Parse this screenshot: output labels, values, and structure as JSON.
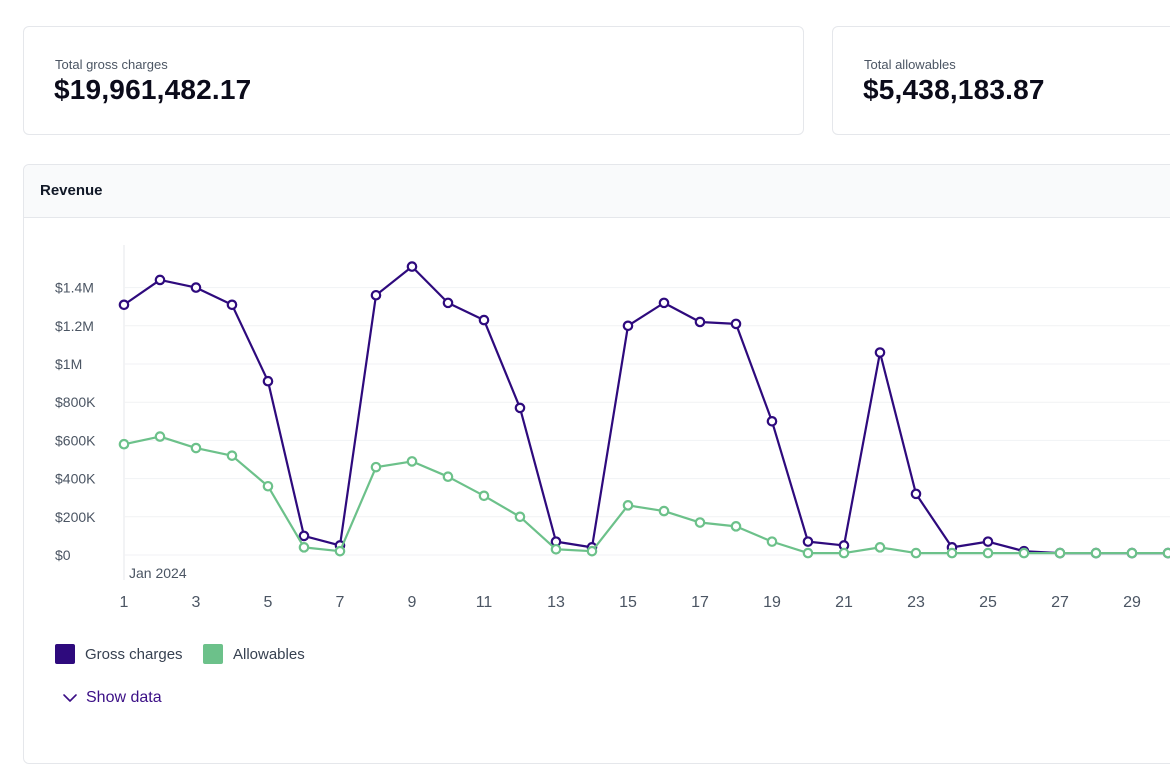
{
  "kpis": {
    "gross": {
      "label": "Total gross charges",
      "value": "$19,961,482.17"
    },
    "allowables": {
      "label": "Total allowables",
      "value": "$5,438,183.87"
    }
  },
  "panel": {
    "title": "Revenue"
  },
  "chart_data": {
    "type": "line",
    "title": "",
    "x": [
      1,
      2,
      3,
      4,
      5,
      6,
      7,
      8,
      9,
      10,
      11,
      12,
      13,
      14,
      15,
      16,
      17,
      18,
      19,
      20,
      21,
      22,
      23,
      24,
      25,
      26,
      27,
      28,
      29,
      30
    ],
    "x_tick_labels": [
      "1",
      "3",
      "5",
      "7",
      "9",
      "11",
      "13",
      "15",
      "17",
      "19",
      "21",
      "23",
      "25",
      "27",
      "29"
    ],
    "x_sub_label": "Jan 2024",
    "y_tick_labels": [
      "$0",
      "$200K",
      "$400K",
      "$600K",
      "$800K",
      "$1M",
      "$1.2M",
      "$1.4M"
    ],
    "ylim": [
      0,
      1600000
    ],
    "grid": true,
    "legend_position": "bottom-left",
    "series": [
      {
        "name": "Gross charges",
        "color": "#2e0a7d",
        "values": [
          1310000,
          1440000,
          1400000,
          1310000,
          910000,
          100000,
          50000,
          1360000,
          1510000,
          1320000,
          1230000,
          770000,
          70000,
          40000,
          1200000,
          1320000,
          1220000,
          1210000,
          700000,
          70000,
          50000,
          1060000,
          320000,
          40000,
          70000,
          20000,
          10000,
          10000,
          10000,
          10000
        ]
      },
      {
        "name": "Allowables",
        "color": "#6cc18a",
        "values": [
          580000,
          620000,
          560000,
          520000,
          360000,
          40000,
          20000,
          460000,
          490000,
          410000,
          310000,
          200000,
          30000,
          20000,
          260000,
          230000,
          170000,
          150000,
          70000,
          10000,
          10000,
          40000,
          10000,
          10000,
          10000,
          10000,
          10000,
          10000,
          10000,
          10000
        ]
      }
    ]
  },
  "show_data": {
    "label": "Show data"
  }
}
